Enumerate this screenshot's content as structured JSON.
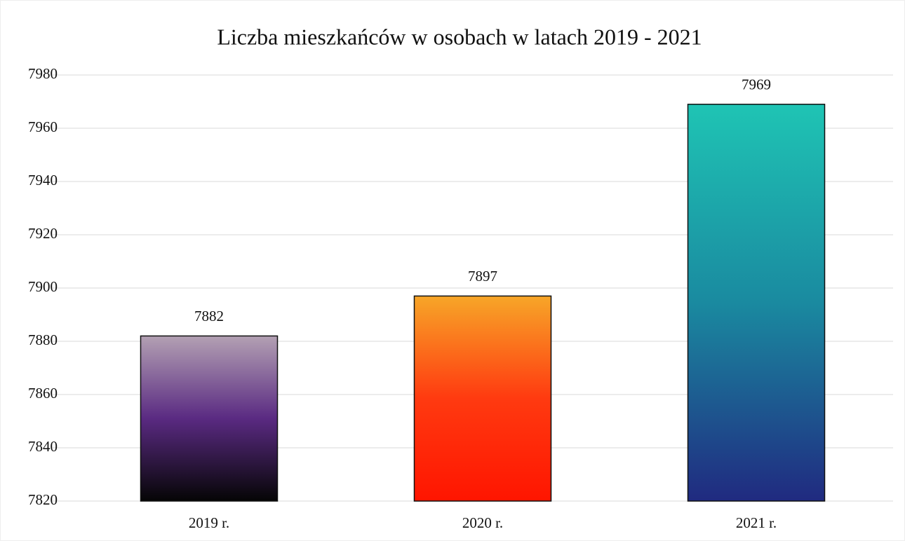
{
  "chart_data": {
    "type": "bar",
    "title": "Liczba mieszkańców w osobach w latach 2019 - 2021",
    "categories": [
      "2019 r.",
      "2020 r.",
      "2021 r."
    ],
    "values": [
      7882,
      7897,
      7969
    ],
    "colors": [
      [
        "#b3a0b3",
        "#5a2a82",
        "#050505"
      ],
      [
        "#f7a628",
        "#ff3a10",
        "#ff1500"
      ],
      [
        "#1fc4b4",
        "#1a8aa0",
        "#202a80"
      ]
    ],
    "ylim": [
      7820,
      7980
    ],
    "yticks": [
      7820,
      7840,
      7860,
      7880,
      7900,
      7920,
      7940,
      7960,
      7980
    ],
    "grid": true
  }
}
